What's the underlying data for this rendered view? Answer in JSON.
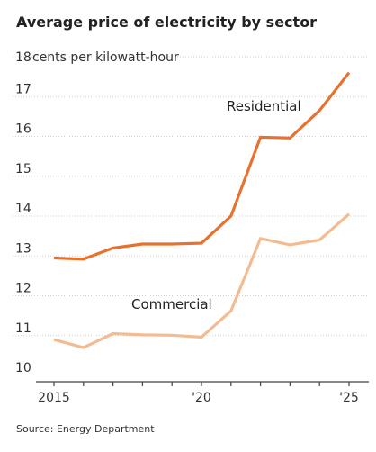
{
  "chart_data": {
    "type": "line",
    "title": "Average price of electricity by sector",
    "ylabel_unit": "cents per kilowatt-hour",
    "ylim": [
      10,
      18
    ],
    "y_ticks": [
      10,
      11,
      12,
      13,
      14,
      15,
      16,
      17,
      18
    ],
    "x": [
      2015,
      2016,
      2017,
      2018,
      2019,
      2020,
      2021,
      2022,
      2023,
      2024,
      2025
    ],
    "x_tick_values": [
      2015,
      2020,
      2025
    ],
    "x_tick_labels": [
      "2015",
      "'20",
      "'25"
    ],
    "grid": true,
    "legend": "inline",
    "series": [
      {
        "name": "Residential",
        "color": "#e8712f",
        "values": [
          12.95,
          12.92,
          13.2,
          13.3,
          13.3,
          13.32,
          14.0,
          15.98,
          15.96,
          16.65,
          17.6
        ]
      },
      {
        "name": "Commercial",
        "color": "#f3bb92",
        "values": [
          10.9,
          10.7,
          11.05,
          11.02,
          11.01,
          10.96,
          11.62,
          13.44,
          13.28,
          13.4,
          14.05
        ]
      }
    ]
  },
  "source": "Source: Energy Department"
}
